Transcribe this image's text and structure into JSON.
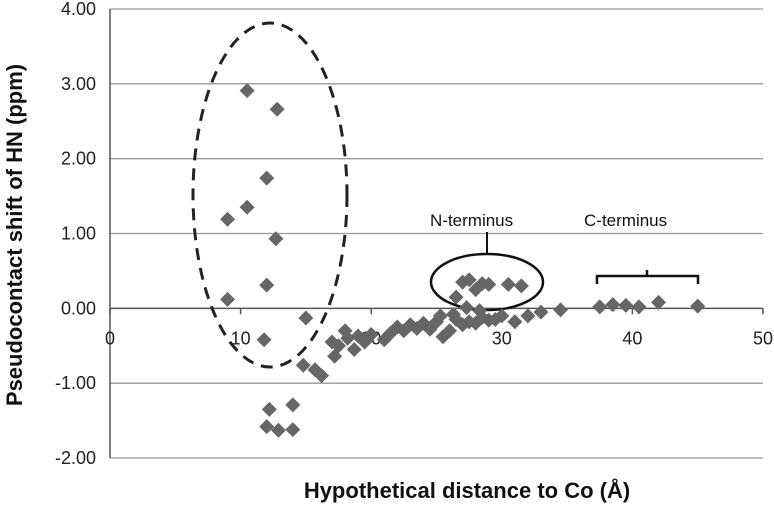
{
  "chart_data": {
    "type": "scatter",
    "title": "",
    "xlabel": "Hypothetical distance to Co (Å)",
    "ylabel": "Pseudocontact shift of HN (ppm)",
    "xlim": [
      0,
      50
    ],
    "ylim": [
      -2.0,
      4.0
    ],
    "x_ticks": [
      "0",
      "10",
      "20",
      "30",
      "40",
      "50"
    ],
    "y_ticks": [
      "-2.00",
      "-1.00",
      "0.00",
      "1.00",
      "2.00",
      "3.00",
      "4.00"
    ],
    "grid": "horizontal",
    "marker": "diamond",
    "colors": {
      "marker": "#666666",
      "grid": "#9a9a9a",
      "axis": "#555555",
      "text": "#111111"
    },
    "series": [
      {
        "points": [
          [
            10.5,
            2.91
          ],
          [
            12.8,
            2.66
          ],
          [
            12.0,
            1.74
          ],
          [
            9.0,
            1.19
          ],
          [
            10.5,
            1.35
          ],
          [
            12.7,
            0.93
          ],
          [
            12.0,
            0.31
          ],
          [
            9.0,
            0.12
          ],
          [
            11.8,
            -0.42
          ],
          [
            12.2,
            -1.35
          ],
          [
            14.0,
            -1.29
          ],
          [
            12.0,
            -1.58
          ],
          [
            12.9,
            -1.63
          ],
          [
            14.0,
            -1.62
          ],
          [
            15.0,
            -0.13
          ],
          [
            14.8,
            -0.76
          ],
          [
            15.7,
            -0.82
          ],
          [
            16.2,
            -0.9
          ],
          [
            17.0,
            -0.45
          ],
          [
            17.5,
            -0.5
          ],
          [
            17.2,
            -0.64
          ],
          [
            18.0,
            -0.3
          ],
          [
            18.2,
            -0.4
          ],
          [
            18.7,
            -0.55
          ],
          [
            19.0,
            -0.37
          ],
          [
            19.5,
            -0.45
          ],
          [
            20.0,
            -0.35
          ],
          [
            21.0,
            -0.42
          ],
          [
            21.5,
            -0.33
          ],
          [
            22.0,
            -0.25
          ],
          [
            22.5,
            -0.3
          ],
          [
            23.0,
            -0.22
          ],
          [
            23.5,
            -0.27
          ],
          [
            24.0,
            -0.2
          ],
          [
            24.5,
            -0.28
          ],
          [
            25.0,
            -0.18
          ],
          [
            25.5,
            -0.38
          ],
          [
            26.0,
            -0.3
          ],
          [
            26.5,
            -0.15
          ],
          [
            27.0,
            -0.22
          ],
          [
            27.5,
            -0.18
          ],
          [
            28.0,
            -0.2
          ],
          [
            28.5,
            -0.12
          ],
          [
            29.0,
            -0.16
          ],
          [
            29.5,
            -0.15
          ],
          [
            30.0,
            -0.1
          ],
          [
            31.0,
            -0.18
          ],
          [
            32.0,
            -0.1
          ],
          [
            33.0,
            -0.05
          ],
          [
            34.5,
            -0.02
          ],
          [
            25.3,
            -0.1
          ],
          [
            26.3,
            -0.08
          ],
          [
            27.3,
            0.01
          ],
          [
            28.3,
            -0.03
          ],
          [
            26.5,
            0.15
          ],
          [
            27.0,
            0.35
          ],
          [
            27.5,
            0.38
          ],
          [
            28.0,
            0.25
          ],
          [
            28.5,
            0.33
          ],
          [
            29.0,
            0.32
          ],
          [
            30.5,
            0.32
          ],
          [
            31.5,
            0.3
          ],
          [
            37.5,
            0.02
          ],
          [
            38.5,
            0.05
          ],
          [
            39.5,
            0.04
          ],
          [
            40.5,
            0.02
          ],
          [
            42.0,
            0.08
          ],
          [
            45.0,
            0.03
          ]
        ]
      }
    ],
    "annotations": [
      {
        "text": "N-terminus"
      },
      {
        "text": "C-terminus"
      }
    ]
  }
}
